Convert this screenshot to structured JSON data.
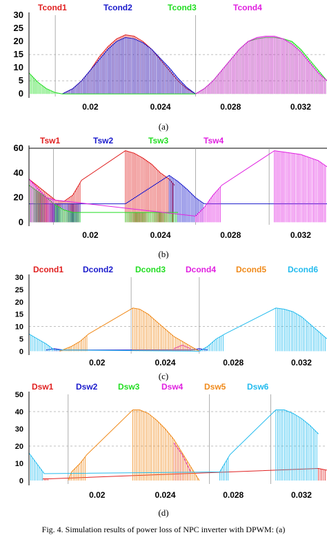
{
  "figure_caption": "Fig. 4. Simulation results of power loss of NPC inverter with DPWM: (a)",
  "chart_data": [
    {
      "type": "line",
      "panel_label": "(a)",
      "xlim": [
        0.0165,
        0.0335
      ],
      "ylim": [
        -1,
        30
      ],
      "yticks": [
        0,
        5,
        10,
        15,
        20,
        25,
        30
      ],
      "xticks": [
        0.02,
        0.024,
        0.028,
        0.032
      ],
      "xtick_labels": [
        "0.02",
        "0.024",
        "0.028",
        "0.032"
      ],
      "series": [
        {
          "name": "Tcond1",
          "color": "#e02020",
          "x": [
            0.0184,
            0.019,
            0.0195,
            0.02,
            0.0205,
            0.021,
            0.0215,
            0.022,
            0.0225,
            0.023,
            0.0235,
            0.024,
            0.0245,
            0.025,
            0.0255,
            0.026
          ],
          "y": [
            0,
            2,
            5,
            9,
            14,
            18,
            21,
            22.5,
            22,
            20,
            17,
            13,
            9,
            5,
            2,
            0
          ]
        },
        {
          "name": "Tcond2",
          "color": "#1a1acc",
          "x": [
            0.0184,
            0.019,
            0.0195,
            0.02,
            0.0205,
            0.021,
            0.0215,
            0.022,
            0.0225,
            0.023,
            0.0235,
            0.024,
            0.0245,
            0.025,
            0.0255,
            0.026
          ],
          "y": [
            0,
            2,
            5,
            9,
            13,
            17,
            20,
            21.5,
            21,
            19.5,
            17,
            13.5,
            10,
            6,
            2.5,
            0
          ]
        },
        {
          "name": "Tcond3",
          "color": "#22dd22",
          "x": [
            0.0165,
            0.017,
            0.0175,
            0.018,
            0.0184,
            0.026,
            0.0265,
            0.027,
            0.0275,
            0.028,
            0.0285,
            0.029,
            0.0295,
            0.03,
            0.0305,
            0.031,
            0.0315,
            0.032,
            0.0325,
            0.033,
            0.0335
          ],
          "y": [
            8,
            4.5,
            2,
            0.5,
            0,
            0,
            2,
            5,
            9,
            13,
            17,
            20,
            21,
            21.5,
            21.5,
            21,
            20,
            17,
            13,
            9,
            5
          ]
        },
        {
          "name": "Tcond4",
          "color": "#e020e0",
          "x": [
            0.026,
            0.0265,
            0.027,
            0.0275,
            0.028,
            0.0285,
            0.029,
            0.0295,
            0.03,
            0.0305,
            0.031,
            0.0315,
            0.032,
            0.0325,
            0.033,
            0.0335
          ],
          "y": [
            0,
            2,
            5,
            9,
            13,
            17,
            20,
            21.5,
            22,
            22,
            21,
            19,
            16,
            12,
            8,
            5
          ]
        }
      ]
    },
    {
      "type": "line",
      "panel_label": "(b)",
      "xlim": [
        0.0165,
        0.0335
      ],
      "ylim": [
        -2,
        60
      ],
      "yticks": [
        0,
        20,
        40,
        60
      ],
      "xticks": [
        0.02,
        0.024,
        0.028,
        0.032
      ],
      "xtick_labels": [
        "0.02",
        "0.024",
        "0.028",
        "0.032"
      ],
      "series": [
        {
          "name": "Tsw1",
          "color": "#e02020",
          "x": [
            0.0165,
            0.018,
            0.0185,
            0.019,
            0.0195,
            0.022,
            0.0225,
            0.023,
            0.0235,
            0.024,
            0.0245,
            0.0248
          ],
          "y": [
            35,
            18,
            17,
            22,
            34,
            58,
            56,
            52,
            47,
            40,
            35,
            30
          ]
        },
        {
          "name": "Tsw2",
          "color": "#1a1acc",
          "x": [
            0.0165,
            0.0175,
            0.0185,
            0.0195,
            0.022,
            0.0245,
            0.025,
            0.0255,
            0.026,
            0.0265,
            0.0305,
            0.0335
          ],
          "y": [
            15,
            15,
            15,
            15,
            15,
            38,
            33,
            27,
            20,
            15,
            15,
            15
          ]
        },
        {
          "name": "Tsw3",
          "color": "#22dd22",
          "x": [
            0.0165,
            0.017,
            0.0175,
            0.018,
            0.0185,
            0.019,
            0.0195,
            0.022,
            0.0235,
            0.0245,
            0.025
          ],
          "y": [
            30,
            25,
            20,
            14,
            10,
            8,
            8,
            8,
            8,
            8,
            8
          ]
        },
        {
          "name": "Tsw4",
          "color": "#e020e0",
          "x": [
            0.0165,
            0.0175,
            0.018,
            0.026,
            0.0265,
            0.027,
            0.0275,
            0.0305,
            0.031,
            0.032,
            0.033,
            0.0335
          ],
          "y": [
            35,
            20,
            18,
            5,
            12,
            22,
            30,
            58,
            57,
            55,
            50,
            45
          ]
        }
      ]
    },
    {
      "type": "line",
      "panel_label": "(c)",
      "xlim": [
        0.016,
        0.0335
      ],
      "ylim": [
        -1,
        30
      ],
      "yticks": [
        0,
        5,
        10,
        15,
        20,
        25,
        30
      ],
      "xticks": [
        0.02,
        0.024,
        0.028,
        0.032
      ],
      "xtick_labels": [
        "0.02",
        "0.024",
        "0.028",
        "0.032"
      ],
      "series": [
        {
          "name": "Dcond1",
          "color": "#e02020",
          "x": [],
          "y": []
        },
        {
          "name": "Dcond2",
          "color": "#1a1acc",
          "x": [
            0.017,
            0.0175,
            0.018,
            0.0255,
            0.026,
            0.0265
          ],
          "y": [
            0.5,
            1,
            0.5,
            0.5,
            1,
            0.5
          ]
        },
        {
          "name": "Dcond3",
          "color": "#22dd22",
          "x": [],
          "y": []
        },
        {
          "name": "Dcond4",
          "color": "#e020e0",
          "x": [
            0.0245,
            0.025,
            0.0255
          ],
          "y": [
            1,
            2.5,
            1
          ]
        },
        {
          "name": "Dcond5",
          "color": "#f08a1a",
          "x": [
            0.0178,
            0.0185,
            0.019,
            0.0195,
            0.0221,
            0.0225,
            0.023,
            0.0235,
            0.024,
            0.0245,
            0.025,
            0.0255,
            0.026
          ],
          "y": [
            0,
            2,
            4,
            7,
            17.5,
            17,
            15,
            12,
            9,
            6,
            4,
            2,
            0
          ]
        },
        {
          "name": "Dcond6",
          "color": "#22bbee",
          "x": [
            0.016,
            0.0165,
            0.017,
            0.0175,
            0.026,
            0.0265,
            0.027,
            0.0275,
            0.0305,
            0.031,
            0.0315,
            0.032,
            0.0325,
            0.033,
            0.0335
          ],
          "y": [
            7,
            5,
            3,
            0.5,
            0,
            2,
            5,
            7,
            17.5,
            17,
            16,
            14,
            11,
            8,
            5
          ]
        }
      ]
    },
    {
      "type": "line",
      "panel_label": "(d)",
      "xlim": [
        0.016,
        0.0335
      ],
      "ylim": [
        -2,
        50
      ],
      "yticks": [
        0,
        10,
        20,
        30,
        40,
        50
      ],
      "xticks": [
        0.02,
        0.024,
        0.028,
        0.032
      ],
      "xtick_labels": [
        "0.02",
        "0.024",
        "0.028",
        "0.032"
      ],
      "series": [
        {
          "name": "Dsw1",
          "color": "#e02020",
          "x": [
            0.0168,
            0.017,
            0.0172,
            0.033,
            0.0335
          ],
          "y": [
            1,
            1,
            1,
            7,
            6
          ]
        },
        {
          "name": "Dsw2",
          "color": "#1a1acc",
          "x": [],
          "y": []
        },
        {
          "name": "Dsw3",
          "color": "#22dd22",
          "x": [],
          "y": []
        },
        {
          "name": "Dsw4",
          "color": "#e020e0",
          "x": [
            0.0245,
            0.025,
            0.0255
          ],
          "y": [
            22,
            15,
            5
          ]
        },
        {
          "name": "Dsw5",
          "color": "#f08a1a",
          "x": [
            0.0183,
            0.0185,
            0.019,
            0.0194,
            0.0221,
            0.0225,
            0.023,
            0.0235,
            0.024,
            0.0245,
            0.025,
            0.0255,
            0.026
          ],
          "y": [
            0,
            5,
            10,
            15,
            41,
            41,
            39,
            35,
            30,
            24,
            16,
            8,
            0
          ]
        },
        {
          "name": "Dsw6",
          "color": "#22bbee",
          "x": [
            0.016,
            0.0163,
            0.0166,
            0.0169,
            0.0272,
            0.0275,
            0.0278,
            0.0305,
            0.031,
            0.0315,
            0.032,
            0.0325,
            0.033
          ],
          "y": [
            16,
            12,
            8,
            4,
            5,
            10,
            15,
            41,
            41,
            39,
            36,
            32,
            27
          ]
        }
      ]
    }
  ]
}
